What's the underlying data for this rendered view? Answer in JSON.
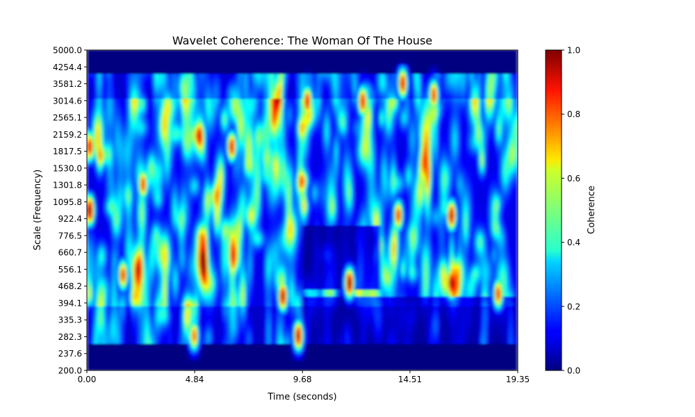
{
  "chart_data": {
    "type": "heatmap",
    "title": "Wavelet Coherence: The Woman Of The House",
    "xlabel": "Time (seconds)",
    "ylabel": "Scale (Frequency)",
    "xlim": [
      0.0,
      19.35
    ],
    "ylim": [
      200.0,
      5000.0
    ],
    "yscale": "log",
    "x_ticks": [
      "0.00",
      "4.84",
      "9.68",
      "14.51",
      "19.35"
    ],
    "y_ticks": [
      "5000.0",
      "4254.4",
      "3581.2",
      "3014.6",
      "2565.1",
      "2159.2",
      "1817.5",
      "1530.0",
      "1301.8",
      "1095.8",
      "922.4",
      "776.5",
      "660.7",
      "556.1",
      "468.2",
      "394.1",
      "335.3",
      "282.3",
      "237.6",
      "200.0"
    ],
    "colorbar": {
      "label": "Coherence",
      "range": [
        0.0,
        1.0
      ],
      "ticks": [
        "0.0",
        "0.2",
        "0.4",
        "0.6",
        "0.8",
        "1.0"
      ],
      "colormap": "jet"
    },
    "grid": false,
    "high_coherence_regions": [
      {
        "t": 0.1,
        "scale": 1000,
        "value": 1.0
      },
      {
        "t": 0.1,
        "scale": 1900,
        "value": 0.9
      },
      {
        "t": 1.6,
        "scale": 520,
        "value": 0.85
      },
      {
        "t": 2.5,
        "scale": 1300,
        "value": 0.85
      },
      {
        "t": 4.8,
        "scale": 282,
        "value": 0.8
      },
      {
        "t": 6.5,
        "scale": 1900,
        "value": 0.9
      },
      {
        "t": 8.8,
        "scale": 420,
        "value": 0.95
      },
      {
        "t": 9.5,
        "scale": 282,
        "value": 0.95
      },
      {
        "t": 9.9,
        "scale": 3000,
        "value": 0.9
      },
      {
        "t": 11.8,
        "scale": 480,
        "value": 1.0
      },
      {
        "t": 12.4,
        "scale": 3000,
        "value": 0.9
      },
      {
        "t": 14.0,
        "scale": 950,
        "value": 0.85
      },
      {
        "t": 14.2,
        "scale": 3600,
        "value": 0.9
      },
      {
        "t": 15.6,
        "scale": 3200,
        "value": 0.85
      },
      {
        "t": 16.4,
        "scale": 480,
        "value": 1.0
      },
      {
        "t": 16.4,
        "scale": 950,
        "value": 0.95
      },
      {
        "t": 18.5,
        "scale": 430,
        "value": 0.85
      }
    ]
  }
}
